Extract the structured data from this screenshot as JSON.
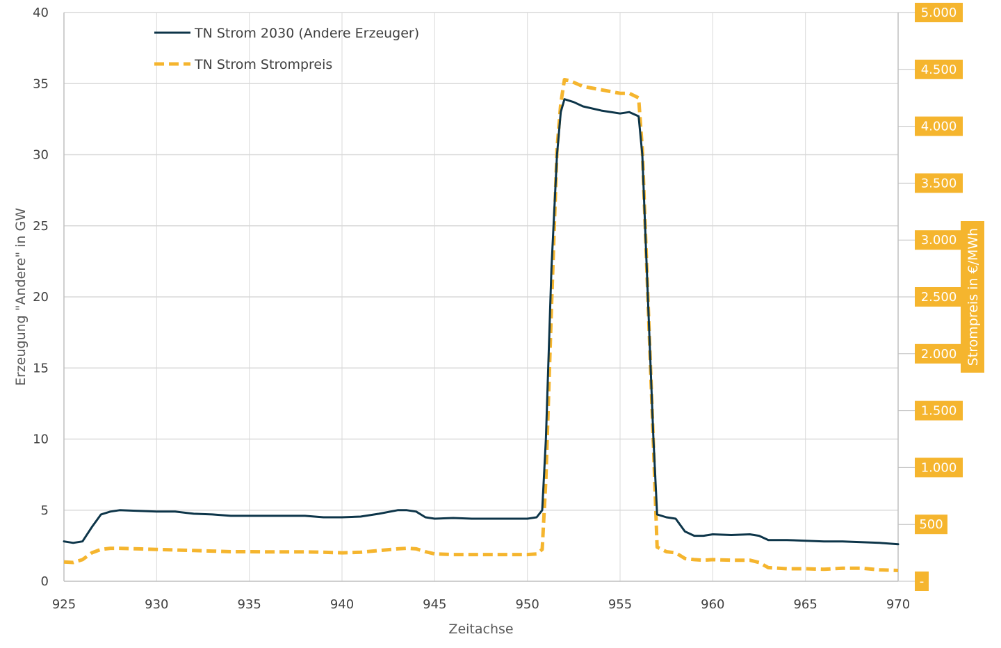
{
  "chart_data": {
    "type": "line",
    "xlabel": "Zeitachse",
    "ylabel": "Erzeugung \"Andere\" in GW",
    "y2label": "Strompreis in €/MWh",
    "xlim": [
      925,
      970
    ],
    "ylim": [
      0,
      40
    ],
    "y2lim": [
      0,
      5000
    ],
    "x_ticks": [
      "925",
      "930",
      "935",
      "940",
      "945",
      "950",
      "955",
      "960",
      "965",
      "970"
    ],
    "y_ticks": [
      "0",
      "5",
      "10",
      "15",
      "20",
      "25",
      "30",
      "35",
      "40"
    ],
    "y2_ticks": [
      "-",
      "500",
      "1.000",
      "1.500",
      "2.000",
      "2.500",
      "3.000",
      "3.500",
      "4.000",
      "4.500",
      "5.000"
    ],
    "grid": true,
    "legend_position": "top-left",
    "colors": {
      "primary": "#0d3549",
      "secondary": "#f5b52e",
      "grid": "#d9d9d9"
    },
    "series": [
      {
        "name": "TN Strom 2030 (Andere Erzeuger)",
        "axis": "left",
        "style": "solid",
        "x": [
          925,
          925.5,
          926,
          926.5,
          927,
          927.5,
          928,
          929,
          930,
          931,
          932,
          933,
          934,
          935,
          936,
          937,
          938,
          939,
          940,
          941,
          942,
          943,
          943.5,
          944,
          944.5,
          945,
          946,
          947,
          948,
          949,
          950,
          950.5,
          950.8,
          951,
          951.3,
          951.6,
          951.8,
          952,
          952.5,
          953,
          954,
          955,
          955.5,
          956,
          956.2,
          956.5,
          956.8,
          957,
          957.5,
          958,
          958.5,
          959,
          959.5,
          960,
          961,
          962,
          962.5,
          963,
          964,
          965,
          966,
          967,
          968,
          969,
          970
        ],
        "values": [
          2.8,
          2.7,
          2.8,
          3.8,
          4.7,
          4.9,
          5.0,
          4.95,
          4.9,
          4.9,
          4.75,
          4.7,
          4.6,
          4.6,
          4.6,
          4.6,
          4.6,
          4.5,
          4.5,
          4.55,
          4.75,
          5.0,
          5.0,
          4.9,
          4.5,
          4.4,
          4.45,
          4.4,
          4.4,
          4.4,
          4.4,
          4.5,
          5.0,
          10,
          22,
          30,
          33,
          33.9,
          33.7,
          33.4,
          33.1,
          32.9,
          33.0,
          32.7,
          30,
          20,
          10,
          4.7,
          4.5,
          4.4,
          3.5,
          3.2,
          3.2,
          3.3,
          3.25,
          3.3,
          3.2,
          2.9,
          2.9,
          2.85,
          2.8,
          2.8,
          2.75,
          2.7,
          2.6
        ]
      },
      {
        "name": "TN Strom Strompreis",
        "axis": "right",
        "style": "dashed",
        "x": [
          925,
          925.5,
          926,
          926.5,
          927,
          927.5,
          928,
          929,
          930,
          931,
          932,
          933,
          934,
          935,
          936,
          937,
          938,
          939,
          940,
          941,
          942,
          943,
          943.5,
          944,
          944.5,
          945,
          946,
          947,
          948,
          949,
          950,
          950.5,
          950.8,
          951,
          951.3,
          951.6,
          951.8,
          952,
          952.3,
          953,
          954,
          955,
          955.5,
          956,
          956.2,
          956.5,
          956.8,
          957,
          957.5,
          958,
          958.5,
          959,
          959.5,
          960,
          961,
          962,
          962.5,
          963,
          964,
          965,
          966,
          967,
          968,
          969,
          970
        ],
        "values": [
          170,
          165,
          190,
          250,
          280,
          290,
          290,
          285,
          280,
          275,
          270,
          265,
          260,
          260,
          258,
          258,
          258,
          255,
          250,
          255,
          270,
          285,
          290,
          285,
          260,
          240,
          235,
          235,
          235,
          235,
          235,
          240,
          280,
          900,
          2400,
          3800,
          4200,
          4410,
          4400,
          4350,
          4320,
          4290,
          4290,
          4250,
          3800,
          2500,
          1200,
          300,
          260,
          250,
          200,
          190,
          185,
          190,
          185,
          185,
          165,
          120,
          110,
          110,
          105,
          115,
          115,
          100,
          95
        ]
      }
    ]
  }
}
